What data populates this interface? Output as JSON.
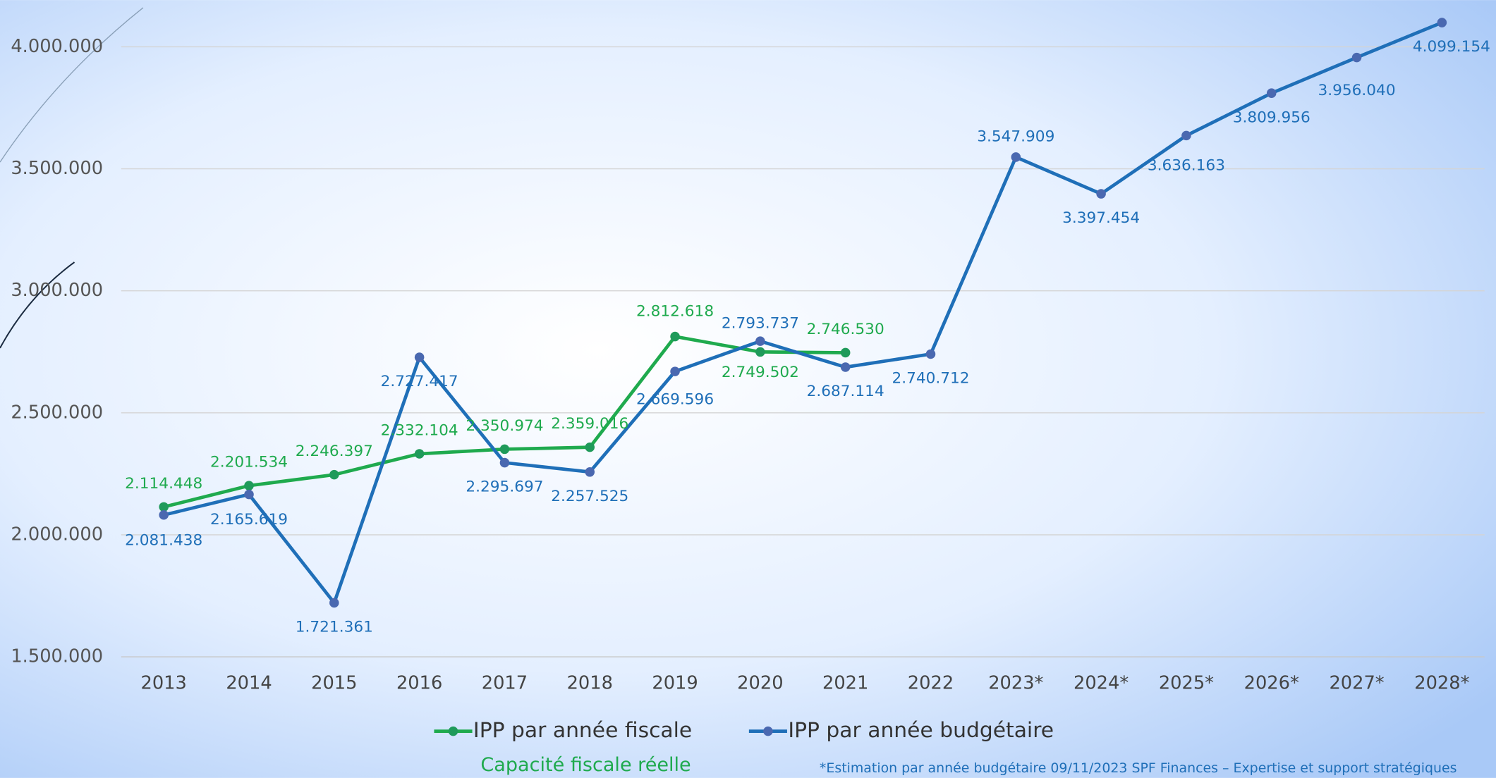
{
  "chart_data": {
    "type": "line",
    "categories": [
      "2013",
      "2014",
      "2015",
      "2016",
      "2017",
      "2018",
      "2019",
      "2020",
      "2021",
      "2022",
      "2023*",
      "2024*",
      "2025*",
      "2026*",
      "2027*",
      "2028*"
    ],
    "series": [
      {
        "name": "IPP par année fiscale",
        "color": "#1faa4e",
        "marker_color": "#1f9a5a",
        "values": [
          2114448,
          2201534,
          2246397,
          2332104,
          2350974,
          2359016,
          2812618,
          2749502,
          2746530,
          null,
          null,
          null,
          null,
          null,
          null,
          null
        ],
        "value_labels": [
          "2.114.448",
          "2.201.534",
          "2.246.397",
          "2.332.104",
          "2.350.974",
          "2.359.016",
          "2.812.618",
          "2.749.502",
          "2.746.530",
          null,
          null,
          null,
          null,
          null,
          null,
          null
        ]
      },
      {
        "name": "IPP par année budgétaire",
        "color": "#1f6fb8",
        "marker_color": "#4a68b0",
        "values": [
          2081438,
          2165619,
          1721361,
          2727417,
          2295697,
          2257525,
          2669596,
          2793737,
          2687114,
          2740712,
          3547909,
          3397454,
          3636163,
          3809956,
          3956040,
          4099154
        ],
        "value_labels": [
          "2.081.438",
          "2.165.619",
          "1.721.361",
          "2.727.417",
          "2.295.697",
          "2.257.525",
          "2.669.596",
          "2.793.737",
          "2.687.114",
          "2.740.712",
          "3.547.909",
          "3.397.454",
          "3.636.163",
          "3.809.956",
          "3.956.040",
          "4.099.154"
        ]
      }
    ],
    "ylim": [
      1500000,
      4100000
    ],
    "yticks": [
      {
        "value": 1500000,
        "label": "1.500.000"
      },
      {
        "value": 2000000,
        "label": "2.000.000"
      },
      {
        "value": 2500000,
        "label": "2.500.000"
      },
      {
        "value": 3000000,
        "label": "3.000.000"
      },
      {
        "value": 3500000,
        "label": "3.500.000"
      },
      {
        "value": 4000000,
        "label": "4.000.000"
      }
    ],
    "grid": true,
    "legend": "bottom",
    "subtitle": "Capacité fiscale réelle",
    "annotation": "*Estimation par année budgétaire  09/11/2023 SPF Finances – Expertise et support stratégiques"
  }
}
